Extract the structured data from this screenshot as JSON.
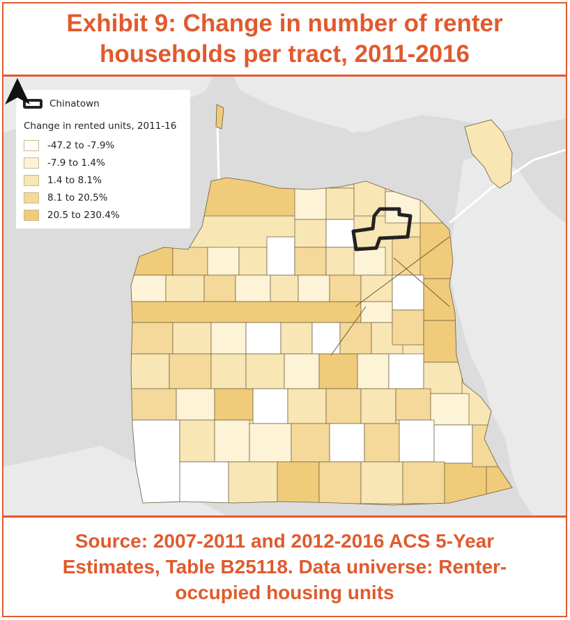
{
  "title": "Exhibit 9: Change in number of renter\nhouseholds per tract, 2011-2016",
  "source": "Source: 2007-2011 and 2012-2016 ACS 5-Year\nEstimates, Table B25118. Data universe: Renter-\noccupied housing units",
  "legend": {
    "highlight_label": "Chinatown",
    "title": "Change in rented units, 2011-16",
    "bins": [
      {
        "label": "-47.2 to -7.9%",
        "color": "#ffffff"
      },
      {
        "label": "-7.9 to 1.4%",
        "color": "#fdf3d6"
      },
      {
        "label": "1.4 to 8.1%",
        "color": "#f9e6b5"
      },
      {
        "label": "8.1 to 20.5%",
        "color": "#f5d99a"
      },
      {
        "label": "20.5 to 230.4%",
        "color": "#f0cb7a"
      }
    ]
  },
  "colors": {
    "accent": "#e05a2e",
    "water": "#dcdcdc",
    "land": "#eaeaea",
    "tract_border": "#6a5a3a",
    "chinatown_border": "#222222"
  },
  "icons": {
    "north_arrow": "north-arrow-icon"
  }
}
